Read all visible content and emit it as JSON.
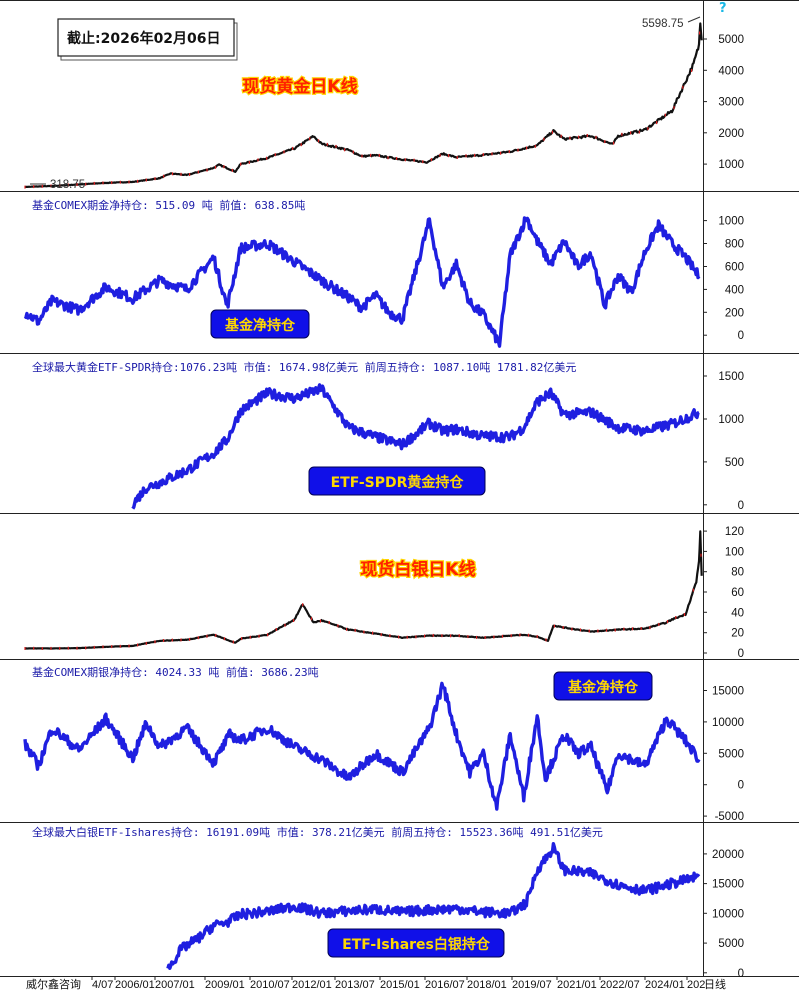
{
  "header": {
    "date_stamp": "截止:2026年02月06日",
    "help_glyph": "?"
  },
  "footer": {
    "source": "威尔鑫咨询",
    "suffix": "日线"
  },
  "colors": {
    "blue_series": "#1f1fe0",
    "black_series": "#111111",
    "info_text": "#1a1aa8",
    "label_red": "#ff2200",
    "label_box": "#1010e8"
  },
  "chart_data": [
    {
      "id": "gold",
      "type": "line",
      "style": "candlestick",
      "title": "现货黄金日K线",
      "info": "",
      "ylim": [
        300,
        5800
      ],
      "yticks": [
        1000,
        2000,
        3000,
        4000,
        5000
      ],
      "annotations": {
        "high": "5598.75",
        "low": "318.75"
      },
      "x": [
        2001,
        2002,
        2003,
        2004,
        2005,
        2006,
        2006.4,
        2007,
        2008,
        2008.2,
        2008.8,
        2009,
        2010,
        2011,
        2011.7,
        2012,
        2013,
        2013.5,
        2014,
        2015,
        2015.9,
        2016.5,
        2017,
        2018,
        2019,
        2020,
        2020.6,
        2021,
        2022,
        2022.8,
        2023,
        2024,
        2025,
        2025.8,
        2026,
        2026.05,
        2026.1
      ],
      "values": [
        270,
        300,
        350,
        400,
        430,
        550,
        700,
        650,
        880,
        980,
        760,
        1000,
        1200,
        1500,
        1890,
        1650,
        1450,
        1250,
        1280,
        1150,
        1060,
        1330,
        1220,
        1290,
        1400,
        1600,
        2060,
        1800,
        1900,
        1630,
        1900,
        2100,
        2700,
        4200,
        4800,
        5598,
        4960
      ]
    },
    {
      "id": "gold-comex",
      "type": "line",
      "title": "基金净持仓",
      "info": "基金COMEX期金净持仓: 515.09 吨  前值: 638.85吨",
      "ylim": [
        -120,
        1110
      ],
      "yticks": [
        0,
        200,
        400,
        600,
        800,
        1000
      ],
      "x": [
        2001,
        2001.5,
        2002,
        2003,
        2004,
        2005,
        2006,
        2007,
        2008,
        2008.5,
        2009,
        2010,
        2011,
        2012,
        2013,
        2013.5,
        2014,
        2014.5,
        2015,
        2016,
        2016.5,
        2017,
        2017.5,
        2018,
        2018.6,
        2019,
        2019.6,
        2020,
        2020.5,
        2021,
        2021.5,
        2022,
        2022.5,
        2023,
        2023.5,
        2024,
        2024.5,
        2025,
        2025.5,
        2026
      ],
      "values": [
        200,
        120,
        300,
        220,
        420,
        320,
        480,
        400,
        680,
        250,
        760,
        800,
        640,
        480,
        330,
        240,
        350,
        200,
        140,
        1000,
        420,
        620,
        280,
        180,
        -80,
        700,
        1030,
        820,
        620,
        820,
        600,
        720,
        260,
        520,
        380,
        730,
        960,
        800,
        680,
        515
      ]
    },
    {
      "id": "gold-etf",
      "type": "line",
      "title": "ETF-SPDR黄金持仓",
      "info": "全球最大黄金ETF-SPDR持仓:1076.23吨  市值: 1674.98亿美元       前周五持仓: 1087.10吨  1781.82亿美元",
      "ylim": [
        -60,
        1570
      ],
      "yticks": [
        0,
        500,
        1000,
        1500
      ],
      "x": [
        2005,
        2005.5,
        2006,
        2007,
        2008,
        2008.5,
        2009,
        2010,
        2011,
        2012,
        2013,
        2014,
        2015,
        2016,
        2016.5,
        2017,
        2018,
        2019,
        2019.5,
        2020,
        2020.5,
        2021,
        2022,
        2023,
        2024,
        2025,
        2026
      ],
      "values": [
        10,
        200,
        260,
        400,
        600,
        760,
        1100,
        1300,
        1240,
        1350,
        900,
        790,
        700,
        950,
        860,
        880,
        800,
        790,
        900,
        1200,
        1300,
        1050,
        1080,
        900,
        860,
        940,
        1076
      ]
    },
    {
      "id": "silver",
      "type": "line",
      "style": "candlestick",
      "title": "现货白银日K线",
      "info": "",
      "ylim": [
        -2,
        126
      ],
      "yticks": [
        0,
        20,
        40,
        60,
        80,
        100,
        120
      ],
      "x": [
        2001,
        2002,
        2003,
        2004,
        2005,
        2006,
        2007,
        2008,
        2008.8,
        2009,
        2010,
        2011,
        2011.3,
        2011.7,
        2012,
        2013,
        2014,
        2015,
        2016,
        2017,
        2018,
        2019,
        2019.5,
        2020,
        2020.4,
        2020.6,
        2021,
        2022,
        2023,
        2024,
        2024.8,
        2025,
        2025.5,
        2025.9,
        2026,
        2026.05,
        2026.1
      ],
      "values": [
        4.5,
        4.5,
        4.8,
        6,
        7,
        12,
        13,
        18,
        10,
        14,
        18,
        33,
        48,
        30,
        32,
        23,
        19,
        15,
        17,
        17,
        15,
        17,
        18,
        16,
        12,
        27,
        25,
        21,
        23,
        24,
        30,
        33,
        38,
        70,
        90,
        118,
        76
      ]
    },
    {
      "id": "silver-comex",
      "type": "line",
      "title": "基金净持仓",
      "info": "基金COMEX期银净持仓: 4024.33 吨  前值: 3686.23吨",
      "ylim": [
        -5300,
        17300
      ],
      "yticks": [
        -5000,
        0,
        5000,
        10000,
        15000
      ],
      "x": [
        2001,
        2001.5,
        2002,
        2003,
        2004,
        2005,
        2005.5,
        2006,
        2007,
        2008,
        2008.6,
        2009,
        2010,
        2011,
        2012,
        2013,
        2013.5,
        2014,
        2015,
        2016,
        2016.5,
        2017,
        2017.5,
        2018,
        2018.5,
        2019,
        2019.5,
        2020,
        2020.3,
        2021,
        2021.5,
        2022,
        2022.6,
        2023,
        2024,
        2024.8,
        2025,
        2025.5,
        2026
      ],
      "values": [
        6500,
        3000,
        9000,
        5500,
        10500,
        4200,
        9800,
        6000,
        9000,
        3500,
        8000,
        7000,
        9000,
        6000,
        4000,
        1000,
        3000,
        5000,
        2000,
        9000,
        16000,
        8000,
        2000,
        5000,
        -3500,
        8000,
        -2000,
        11000,
        1000,
        8000,
        5000,
        6000,
        -1000,
        5000,
        3000,
        10500,
        9500,
        7000,
        4024
      ]
    },
    {
      "id": "silver-etf",
      "type": "line",
      "title": "ETF-Ishares白银持仓",
      "info": "全球最大白银ETF-Ishares持仓: 16191.09吨   市值: 378.21亿美元      前周五持仓: 15523.36吨  491.51亿美元",
      "ylim": [
        -200,
        22500
      ],
      "yticks": [
        0,
        5000,
        10000,
        15000,
        20000
      ],
      "x": [
        2006.3,
        2006.8,
        2007.5,
        2008,
        2008.5,
        2009,
        2010,
        2011,
        2012,
        2013,
        2014,
        2015,
        2016,
        2017,
        2018,
        2019,
        2019.6,
        2020,
        2020.6,
        2021,
        2022,
        2023,
        2024,
        2025,
        2026
      ],
      "values": [
        600,
        4000,
        6000,
        8000,
        8500,
        9800,
        10300,
        11200,
        10000,
        10400,
        10700,
        10200,
        10600,
        10800,
        10200,
        10000,
        11800,
        17300,
        21000,
        17300,
        16700,
        14800,
        13800,
        15000,
        16191
      ]
    }
  ],
  "date_axis": {
    "labels": [
      "4/07",
      "2006/01",
      "2007/01",
      "2009/01",
      "2010/07",
      "2012/01",
      "2013/07",
      "2015/01",
      "2016/07",
      "2018/01",
      "2019/07",
      "2021/01",
      "2022/07",
      "2024/01",
      "202"
    ]
  }
}
